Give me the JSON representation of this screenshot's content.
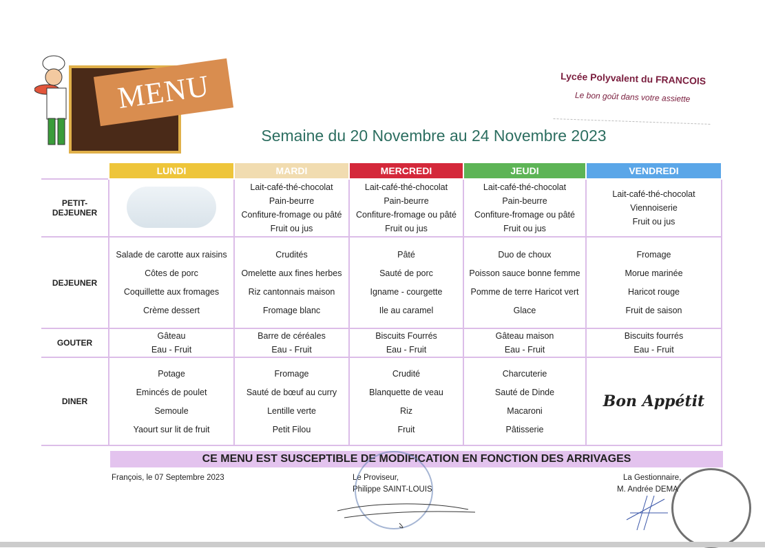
{
  "header": {
    "logo_text": "MENU",
    "school_name": "Lycée Polyvalent du FRANCOIS",
    "school_tagline": "Le bon goût dans votre assiette",
    "title": "Semaine du 20 Novembre au 24 Novembre 2023"
  },
  "days": [
    {
      "label": "LUNDI",
      "color": "#eec53a"
    },
    {
      "label": "MARDI",
      "color": "#f1dcb0"
    },
    {
      "label": "MERCREDI",
      "color": "#d4283a"
    },
    {
      "label": "JEUDI",
      "color": "#5db456"
    },
    {
      "label": "VENDREDI",
      "color": "#5aa6e8"
    }
  ],
  "rows": [
    {
      "label": "PETIT-DEJEUNER",
      "cells": [
        [],
        [
          "Lait-café-thé-chocolat",
          "Pain-beurre",
          "Confiture-fromage ou pâté",
          "Fruit ou jus"
        ],
        [
          "Lait-café-thé-chocolat",
          "Pain-beurre",
          "Confiture-fromage ou pâté",
          "Fruit ou jus"
        ],
        [
          "Lait-café-thé-chocolat",
          "Pain-beurre",
          "Confiture-fromage ou pâté",
          "Fruit ou jus"
        ],
        [
          "Lait-café-thé-chocolat",
          "Viennoiserie",
          "Fruit ou jus"
        ]
      ]
    },
    {
      "label": "DEJEUNER",
      "cells": [
        [
          "Salade de carotte aux raisins",
          "Côtes de porc",
          "Coquillette aux fromages",
          "Crème dessert"
        ],
        [
          "Crudités",
          "Omelette aux fines herbes",
          "Riz cantonnais maison",
          "Fromage blanc"
        ],
        [
          "Pâté",
          "Sauté de porc",
          "Igname - courgette",
          "Ile au caramel"
        ],
        [
          "Duo de choux",
          "Poisson sauce bonne femme",
          "Pomme de terre Haricot vert",
          "Glace"
        ],
        [
          "Fromage",
          "Morue marinée",
          "Haricot rouge",
          "Fruit de saison"
        ]
      ]
    },
    {
      "label": "GOUTER",
      "cells": [
        [
          "Gâteau",
          "Eau - Fruit"
        ],
        [
          "Barre de céréales",
          "Eau - Fruit"
        ],
        [
          "Biscuits Fourrés",
          "Eau - Fruit"
        ],
        [
          "Gâteau maison",
          "Eau - Fruit"
        ],
        [
          "Biscuits fourrés",
          "Eau - Fruit"
        ]
      ]
    },
    {
      "label": "DINER",
      "cells": [
        [
          "Potage",
          "Emincés de poulet",
          "Semoule",
          "Yaourt  sur lit de fruit"
        ],
        [
          "Fromage",
          "Sauté de bœuf au curry",
          "Lentille verte",
          "Petit Filou"
        ],
        [
          "Crudité",
          "Blanquette de veau",
          "Riz",
          "Fruit"
        ],
        [
          "Charcuterie",
          "Sauté de Dinde",
          "Macaroni",
          "Pâtisserie"
        ],
        []
      ]
    }
  ],
  "bon_appetit": "Bon Appétit",
  "notice": "CE MENU EST SUSCEPTIBLE DE MODIFICATION EN FONCTION DES ARRIVAGES",
  "footer": {
    "place_date": "François, le  07 Septembre 2023",
    "proviseur_title": "Le Proviseur,",
    "proviseur_name": "Philippe SAINT-LOUIS",
    "gestion_title": "La Gestionnaire,",
    "gestion_name": "M. Andrée DEMA"
  }
}
